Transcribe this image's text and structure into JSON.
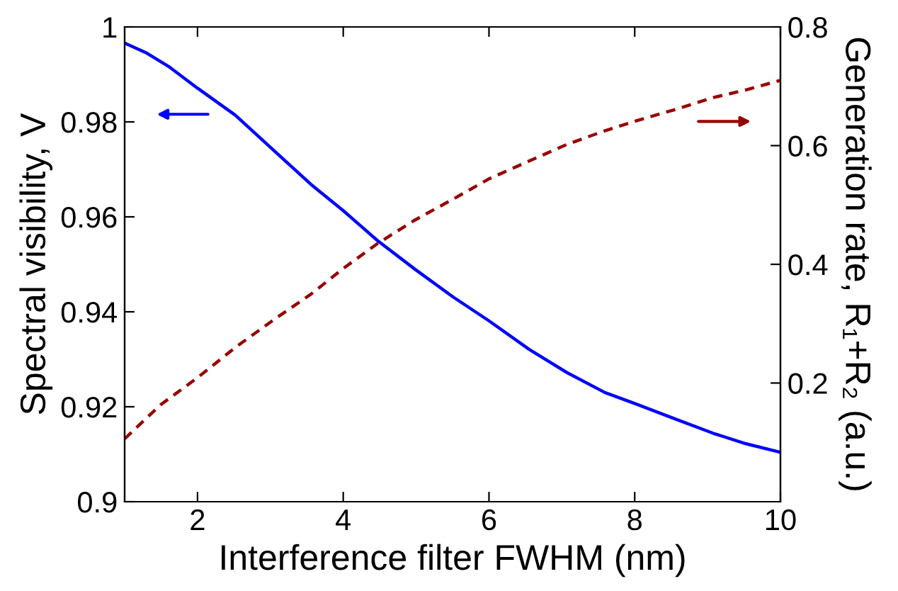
{
  "chart_data": {
    "type": "line",
    "xlabel": "Interference filter FWHM (nm)",
    "ylabel": "Spectral visibility, V",
    "y2label": "Generation rate, R₁+R₂ (a.u.)",
    "xlim": [
      1,
      10
    ],
    "xticks": [
      2,
      4,
      6,
      8,
      10
    ],
    "ylim": [
      0.9,
      1
    ],
    "yticks": [
      0.9,
      0.92,
      0.94,
      0.96,
      0.98,
      1
    ],
    "y2lim": [
      0,
      0.8
    ],
    "y2ticks": [
      0.2,
      0.4,
      0.6,
      0.8
    ],
    "grid": false,
    "legend": false,
    "series": [
      {
        "color": "#0000ff",
        "line_style": "solid",
        "x": [
          1,
          1.29,
          1.62,
          2.0,
          2.52,
          3.04,
          3.56,
          4.0,
          4.47,
          4.99,
          5.51,
          6.0,
          6.55,
          7.07,
          7.59,
          8.0,
          8.56,
          9.08,
          9.53,
          10
        ],
        "values": [
          0.9966,
          0.9946,
          0.9915,
          0.9871,
          0.9814,
          0.9741,
          0.9668,
          0.9613,
          0.955,
          0.9489,
          0.9431,
          0.9381,
          0.9321,
          0.9272,
          0.923,
          0.9207,
          0.9174,
          0.9144,
          0.9122,
          0.9104
        ]
      },
      {
        "color": "#990000",
        "line_style": "dashed",
        "axis": "y2",
        "x": [
          1,
          1.49,
          2.0,
          2.52,
          3.04,
          3.56,
          4.0,
          4.47,
          4.99,
          5.51,
          6.0,
          6.55,
          7.07,
          7.59,
          8.0,
          8.56,
          9.08,
          9.53,
          10
        ],
        "values": [
          0.106,
          0.163,
          0.209,
          0.26,
          0.306,
          0.35,
          0.393,
          0.435,
          0.475,
          0.51,
          0.544,
          0.574,
          0.602,
          0.625,
          0.641,
          0.661,
          0.681,
          0.694,
          0.71
        ]
      }
    ]
  }
}
